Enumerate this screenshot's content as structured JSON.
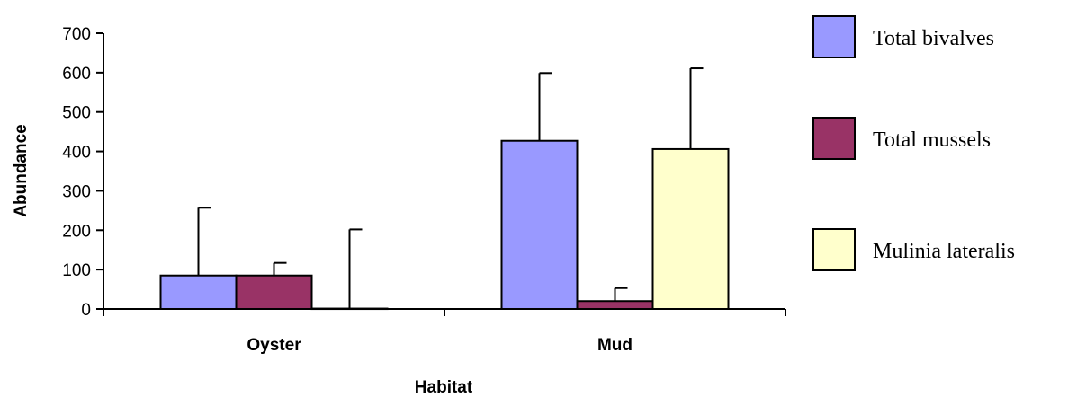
{
  "chart_data": {
    "type": "bar",
    "title": "",
    "xlabel": "Habitat",
    "ylabel": "Abundance",
    "ylim": [
      0,
      700
    ],
    "yticks": [
      0,
      100,
      200,
      300,
      400,
      500,
      600,
      700
    ],
    "categories": [
      "Oyster",
      "Mud"
    ],
    "legend_position": "right",
    "grid": false,
    "series": [
      {
        "name": "Total bivalves",
        "color": "#9999ff",
        "values": [
          85,
          427
        ],
        "error_upper": [
          257,
          599
        ]
      },
      {
        "name": "Total mussels",
        "color": "#993366",
        "values": [
          85,
          20
        ],
        "error_upper": [
          117,
          53
        ]
      },
      {
        "name": "Mulinia lateralis",
        "color": "#ffffcc",
        "values": [
          1,
          406
        ],
        "error_upper": [
          202,
          611
        ]
      }
    ]
  }
}
